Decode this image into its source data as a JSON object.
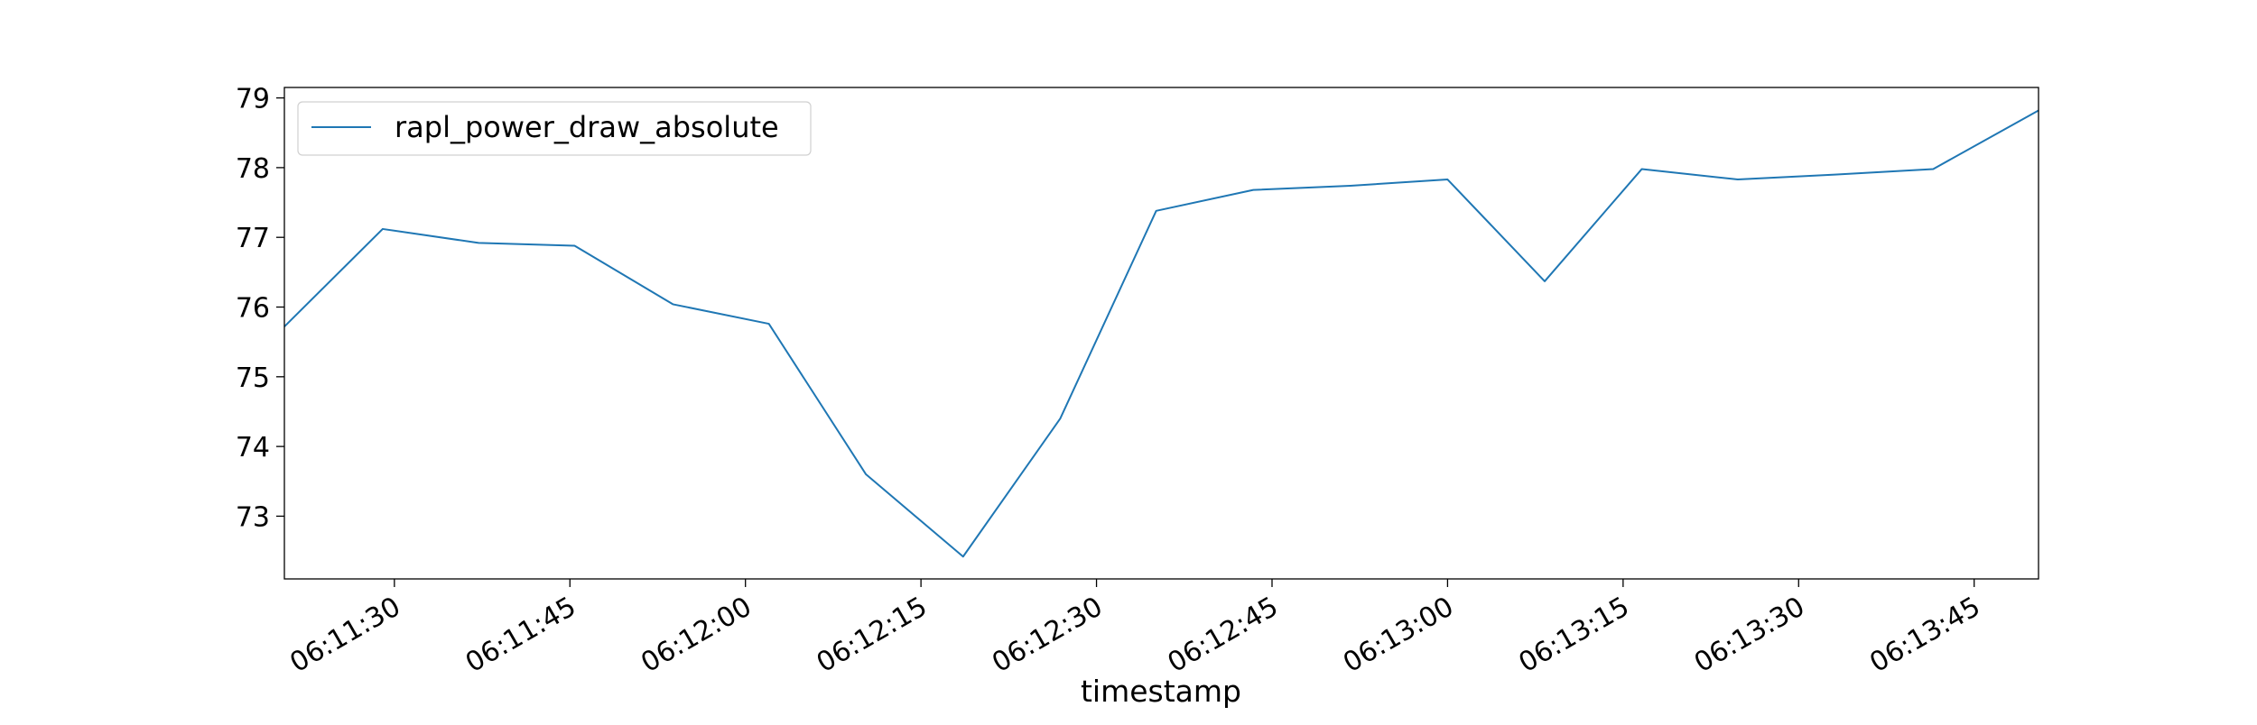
{
  "chart_data": {
    "type": "line",
    "title": "",
    "xlabel": "timestamp",
    "ylabel": "",
    "x_tick_labels": [
      "06:11:30",
      "06:11:45",
      "06:12:00",
      "06:12:15",
      "06:12:30",
      "06:12:45",
      "06:13:00",
      "06:13:15",
      "06:13:30",
      "06:13:45"
    ],
    "y_tick_labels": [
      "73",
      "74",
      "75",
      "76",
      "77",
      "78",
      "79"
    ],
    "xlim": [
      "06:11:20.6",
      "06:13:50.5"
    ],
    "ylim": [
      72.1,
      79.15
    ],
    "x": [
      "06:11:20.6",
      "06:11:29",
      "06:11:37.2",
      "06:11:45.4",
      "06:11:53.8",
      "06:12:02",
      "06:12:10.3",
      "06:12:18.6",
      "06:12:26.9",
      "06:12:35.1",
      "06:12:43.4",
      "06:12:51.7",
      "06:13:00",
      "06:13:08.3",
      "06:13:16.6",
      "06:13:24.8",
      "06:13:33.1",
      "06:13:41.5",
      "06:13:50.5"
    ],
    "series": [
      {
        "name": "rapl_power_draw_absolute",
        "color": "#1f77b4",
        "values": [
          75.72,
          77.12,
          76.92,
          76.88,
          76.04,
          75.76,
          73.6,
          72.42,
          74.4,
          77.38,
          77.68,
          77.74,
          77.83,
          76.37,
          77.98,
          77.83,
          77.9,
          77.98,
          78.82
        ]
      }
    ],
    "legend": {
      "location": "top-left",
      "entries": [
        "rapl_power_draw_absolute"
      ]
    },
    "grid": false
  }
}
